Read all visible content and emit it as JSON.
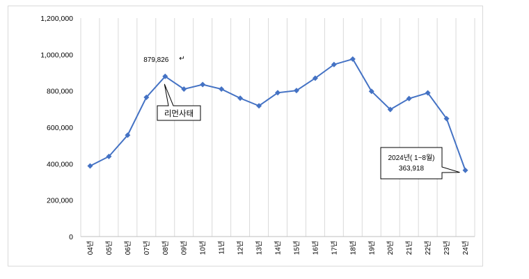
{
  "chart_data": {
    "type": "line",
    "categories": [
      "04년",
      "05년",
      "06년",
      "07년",
      "08년",
      "09년",
      "10년",
      "11년",
      "12년",
      "13년",
      "14년",
      "15년",
      "16년",
      "17년",
      "18년",
      "19년",
      "20년",
      "21년",
      "22년",
      "23년",
      "24년"
    ],
    "series": [
      {
        "values": [
          388000,
          440000,
          557000,
          765000,
          879826,
          810000,
          835000,
          810000,
          760000,
          718000,
          790000,
          802000,
          870000,
          945000,
          975000,
          798000,
          698000,
          758000,
          789000,
          648000,
          363918
        ]
      }
    ],
    "title": "",
    "xlabel": "",
    "ylabel": "",
    "ylim": [
      0,
      1200000
    ],
    "yticks": [
      "0",
      "200,000",
      "400,000",
      "600,000",
      "800,000",
      "1,000,000",
      "1,200,000"
    ],
    "yticks_values": [
      0,
      200000,
      400000,
      600000,
      800000,
      1000000,
      1200000
    ],
    "grid": "vertical",
    "line_color": "#4472C4",
    "annotations": {
      "peak_label": "879,826",
      "return_mark": "↵",
      "event_callout": "리먼사태",
      "last_callout_line1": "2024년( 1~8월)",
      "last_callout_line2": "363,918"
    }
  }
}
